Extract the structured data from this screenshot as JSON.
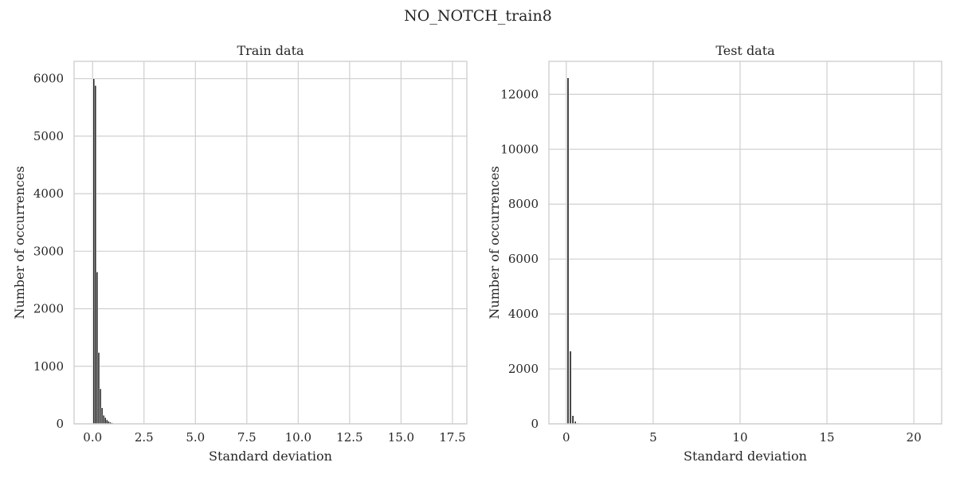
{
  "figure": {
    "title": "NO_NOTCH_train8"
  },
  "chart_data": [
    {
      "type": "bar",
      "title": "Train data",
      "xlabel": "Standard deviation",
      "ylabel": "Number of occurrences",
      "xlim": [
        -0.9,
        18.2
      ],
      "ylim": [
        0,
        6300
      ],
      "xticks": [
        0.0,
        2.5,
        5.0,
        7.5,
        10.0,
        12.5,
        15.0,
        17.5
      ],
      "xtick_labels": [
        "0.0",
        "2.5",
        "5.0",
        "7.5",
        "10.0",
        "12.5",
        "15.0",
        "17.5"
      ],
      "yticks": [
        0,
        1000,
        2000,
        3000,
        4000,
        5000,
        6000
      ],
      "ytick_labels": [
        "0",
        "1000",
        "2000",
        "3000",
        "4000",
        "5000",
        "6000"
      ],
      "grid": true,
      "bin_width": 0.08,
      "bars": [
        {
          "x": 0.06,
          "y": 6000
        },
        {
          "x": 0.14,
          "y": 5880
        },
        {
          "x": 0.22,
          "y": 2640
        },
        {
          "x": 0.3,
          "y": 1240
        },
        {
          "x": 0.38,
          "y": 610
        },
        {
          "x": 0.46,
          "y": 280
        },
        {
          "x": 0.54,
          "y": 150
        },
        {
          "x": 0.62,
          "y": 110
        },
        {
          "x": 0.7,
          "y": 70
        },
        {
          "x": 0.78,
          "y": 45
        },
        {
          "x": 0.86,
          "y": 30
        },
        {
          "x": 0.94,
          "y": 20
        },
        {
          "x": 1.02,
          "y": 12
        },
        {
          "x": 1.1,
          "y": 8
        },
        {
          "x": 1.18,
          "y": 5
        }
      ]
    },
    {
      "type": "bar",
      "title": "Test data",
      "xlabel": "Standard deviation",
      "ylabel": "Number of occurrences",
      "xlim": [
        -1.0,
        21.6
      ],
      "ylim": [
        0,
        13200
      ],
      "xticks": [
        0,
        5,
        10,
        15,
        20
      ],
      "xtick_labels": [
        "0",
        "5",
        "10",
        "15",
        "20"
      ],
      "yticks": [
        0,
        2000,
        4000,
        6000,
        8000,
        10000,
        12000
      ],
      "ytick_labels": [
        "0",
        "2000",
        "4000",
        "6000",
        "8000",
        "10000",
        "12000"
      ],
      "grid": true,
      "bin_width": 0.1,
      "bars": [
        {
          "x": 0.1,
          "y": 12600
        },
        {
          "x": 0.24,
          "y": 2650
        },
        {
          "x": 0.38,
          "y": 300
        },
        {
          "x": 0.52,
          "y": 90
        },
        {
          "x": 0.66,
          "y": 30
        },
        {
          "x": 0.8,
          "y": 10
        }
      ]
    }
  ]
}
